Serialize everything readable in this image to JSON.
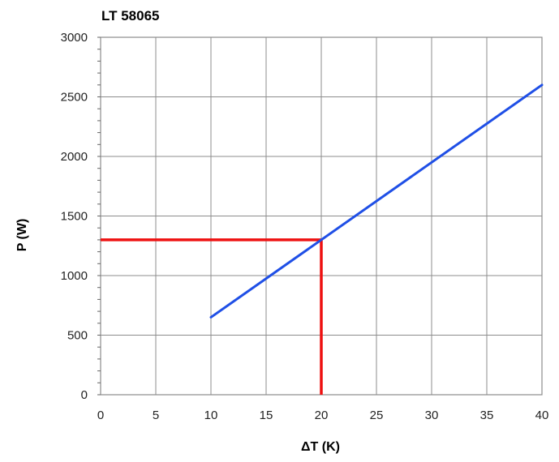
{
  "chart_data": {
    "type": "line",
    "title": "LT 58065",
    "xlabel": "ΔT (K)",
    "ylabel": "P (W)",
    "xlim": [
      0,
      40
    ],
    "ylim": [
      0,
      3000
    ],
    "xticks": [
      0,
      5,
      10,
      15,
      20,
      25,
      30,
      35,
      40
    ],
    "yticks": [
      0,
      500,
      1000,
      1500,
      2000,
      2500,
      3000
    ],
    "grid": true,
    "series": [
      {
        "values": [
          [
            10,
            650
          ],
          [
            40,
            2600
          ]
        ],
        "color": "#1f4fe6"
      }
    ],
    "annotations": [
      {
        "type": "reference-lines",
        "x": 20,
        "y": 1300,
        "color": "#ee1111"
      }
    ]
  }
}
